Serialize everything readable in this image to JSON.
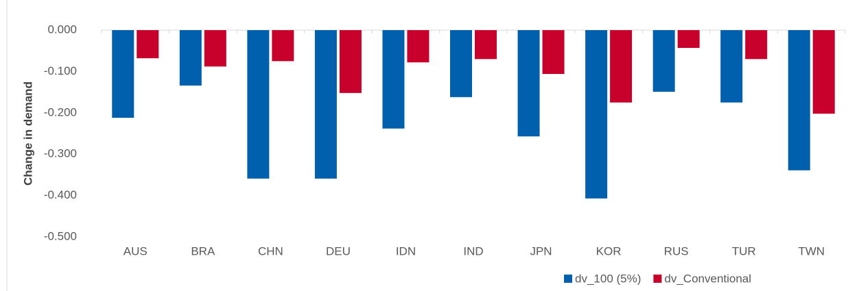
{
  "chart_data": {
    "type": "bar",
    "y_label": "Change in demand",
    "categories": [
      "AUS",
      "BRA",
      "CHN",
      "DEU",
      "IDN",
      "IND",
      "JPN",
      "KOR",
      "RUS",
      "TUR",
      "TWN"
    ],
    "series": [
      {
        "name": "dv_100 (5%)",
        "color": "#0060ae",
        "values": [
          -0.212,
          -0.134,
          -0.359,
          -0.359,
          -0.238,
          -0.162,
          -0.257,
          -0.407,
          -0.149,
          -0.175,
          -0.339
        ]
      },
      {
        "name": "dv_Conventional",
        "color": "#c8002c",
        "values": [
          -0.068,
          -0.088,
          -0.075,
          -0.152,
          -0.078,
          -0.07,
          -0.106,
          -0.175,
          -0.043,
          -0.07,
          -0.202
        ]
      }
    ],
    "ylim": [
      -0.5,
      0
    ],
    "yticks": [
      {
        "value": 0,
        "label": "0.000"
      },
      {
        "value": -0.1,
        "label": "-0.100"
      },
      {
        "value": -0.2,
        "label": "-0.200"
      },
      {
        "value": -0.3,
        "label": "-0.300"
      },
      {
        "value": -0.4,
        "label": "-0.400"
      },
      {
        "value": -0.5,
        "label": "-0.500"
      }
    ],
    "legend": "bottom-right"
  }
}
